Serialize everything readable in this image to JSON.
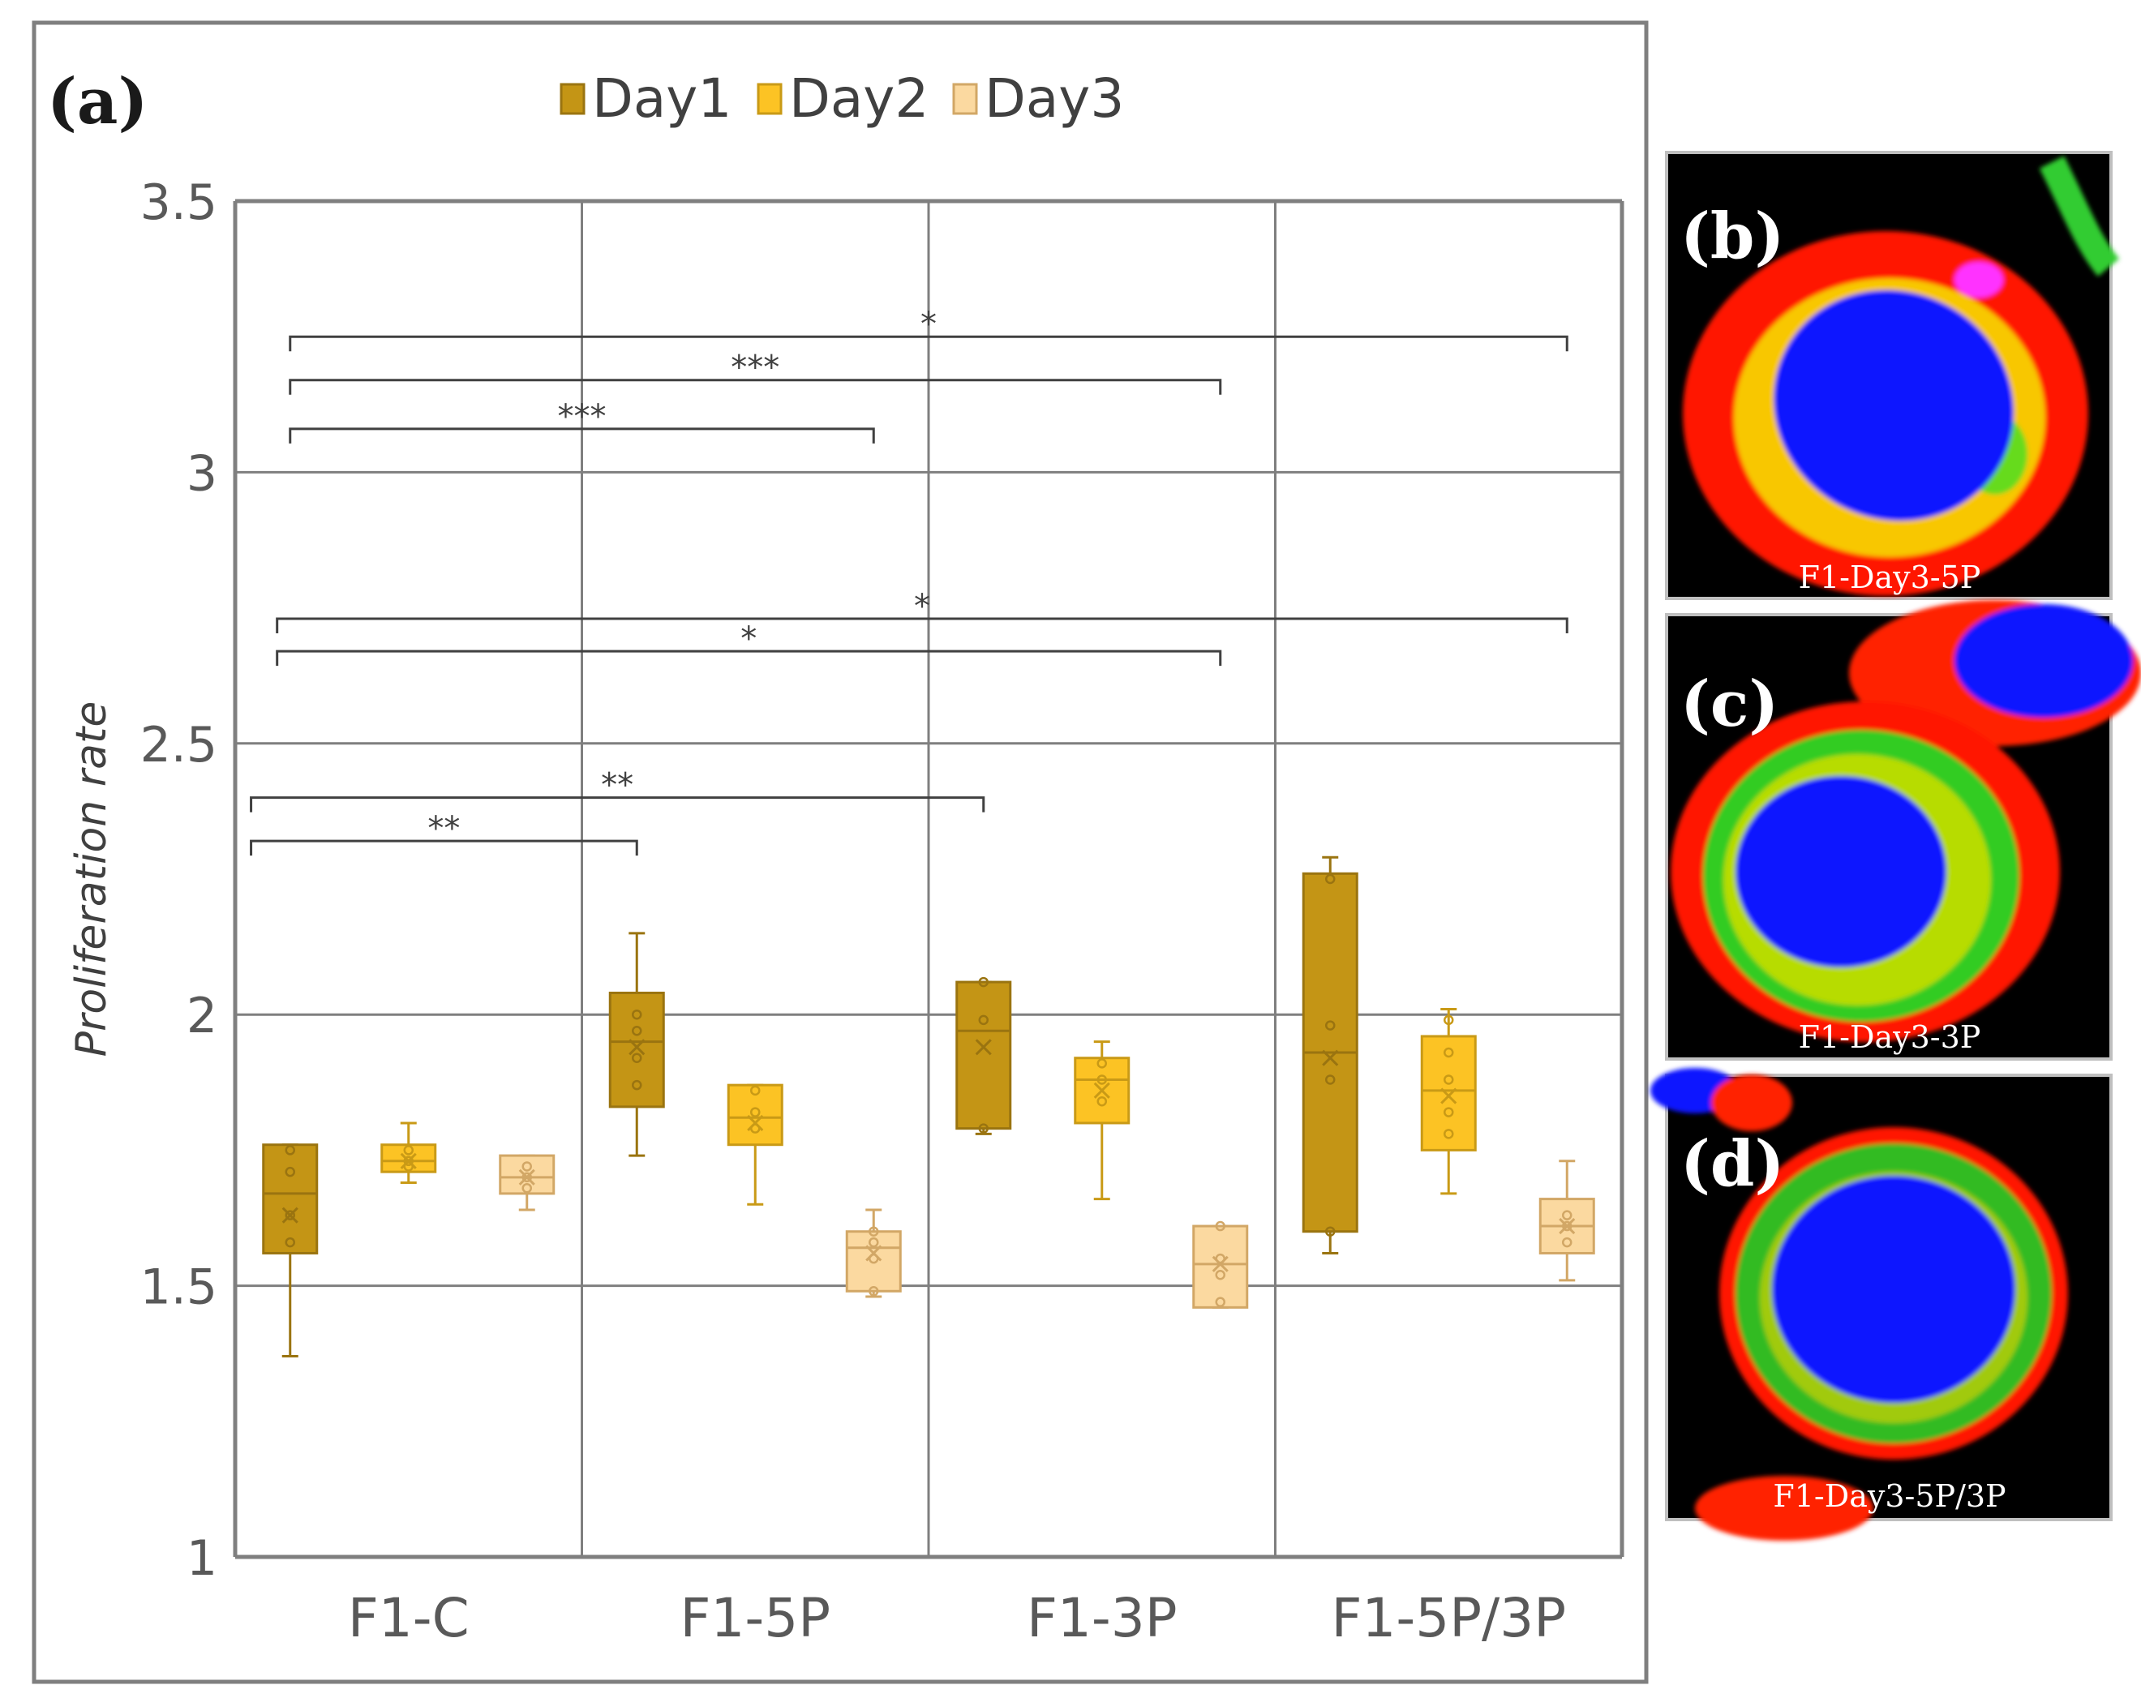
{
  "panels": {
    "a": {
      "label": "(a)"
    },
    "b": {
      "label": "(b)",
      "caption": "F1-Day3-5P"
    },
    "c": {
      "label": "(c)",
      "caption": "F1-Day3-3P"
    },
    "d": {
      "label": "(d)",
      "caption": "F1-Day3-5P/3P"
    }
  },
  "colors": {
    "day1": "#c49515",
    "day2": "#fcc324",
    "day3": "#fbd9a0",
    "day1_edge": "#9a7410",
    "day2_edge": "#c99a16",
    "day3_edge": "#d2a766",
    "grid": "#7f7f7f",
    "axis_text": "#595959"
  },
  "chart_data": {
    "type": "box",
    "title": "",
    "xlabel": "",
    "ylabel": "Proliferation rate",
    "ylim": [
      1,
      3.5
    ],
    "yticks": [
      1,
      1.5,
      2,
      2.5,
      3,
      3.5
    ],
    "ytick_labels": [
      "1",
      "1.5",
      "2",
      "2.5",
      "3",
      "3.5"
    ],
    "categories": [
      "F1-C",
      "F1-5P",
      "F1-3P",
      "F1-5P/3P"
    ],
    "grid": true,
    "legend_position": "top",
    "series": [
      {
        "name": "Day1",
        "color_key": "day1",
        "boxes": [
          {
            "min": 1.37,
            "q1": 1.56,
            "median": 1.67,
            "q3": 1.76,
            "max": 1.76,
            "mean": 1.63,
            "points": [
              1.58,
              1.63,
              1.71,
              1.75
            ]
          },
          {
            "min": 1.74,
            "q1": 1.83,
            "median": 1.95,
            "q3": 2.04,
            "max": 2.15,
            "mean": 1.94,
            "points": [
              1.87,
              1.92,
              1.97,
              2.0
            ]
          },
          {
            "min": 1.78,
            "q1": 1.79,
            "median": 1.97,
            "q3": 2.06,
            "max": 2.06,
            "mean": 1.94,
            "points": [
              1.79,
              1.99,
              2.06
            ]
          },
          {
            "min": 1.56,
            "q1": 1.6,
            "median": 1.93,
            "q3": 2.26,
            "max": 2.29,
            "mean": 1.92,
            "points": [
              1.6,
              1.88,
              1.98,
              2.25
            ]
          }
        ]
      },
      {
        "name": "Day2",
        "color_key": "day2",
        "boxes": [
          {
            "min": 1.69,
            "q1": 1.71,
            "median": 1.73,
            "q3": 1.76,
            "max": 1.8,
            "mean": 1.73,
            "points": [
              1.72,
              1.73,
              1.75
            ]
          },
          {
            "min": 1.65,
            "q1": 1.76,
            "median": 1.81,
            "q3": 1.87,
            "max": 1.87,
            "mean": 1.8,
            "points": [
              1.79,
              1.82,
              1.86
            ]
          },
          {
            "min": 1.66,
            "q1": 1.8,
            "median": 1.88,
            "q3": 1.92,
            "max": 1.95,
            "mean": 1.86,
            "points": [
              1.84,
              1.88,
              1.91
            ]
          },
          {
            "min": 1.67,
            "q1": 1.75,
            "median": 1.86,
            "q3": 1.96,
            "max": 2.01,
            "mean": 1.85,
            "points": [
              1.78,
              1.82,
              1.88,
              1.93,
              1.99
            ]
          }
        ]
      },
      {
        "name": "Day3",
        "color_key": "day3",
        "boxes": [
          {
            "min": 1.64,
            "q1": 1.67,
            "median": 1.7,
            "q3": 1.74,
            "max": 1.74,
            "mean": 1.7,
            "points": [
              1.68,
              1.7,
              1.72
            ]
          },
          {
            "min": 1.48,
            "q1": 1.49,
            "median": 1.57,
            "q3": 1.6,
            "max": 1.64,
            "mean": 1.56,
            "points": [
              1.49,
              1.55,
              1.58,
              1.6
            ]
          },
          {
            "min": 1.46,
            "q1": 1.46,
            "median": 1.54,
            "q3": 1.61,
            "max": 1.61,
            "mean": 1.54,
            "points": [
              1.47,
              1.52,
              1.55,
              1.61
            ]
          },
          {
            "min": 1.51,
            "q1": 1.56,
            "median": 1.61,
            "q3": 1.66,
            "max": 1.73,
            "mean": 1.61,
            "points": [
              1.58,
              1.61,
              1.63
            ]
          }
        ]
      }
    ],
    "significance": [
      {
        "from": [
          0,
          0
        ],
        "to": [
          3,
          2
        ],
        "y": 3.25,
        "label": "*"
      },
      {
        "from": [
          0,
          0
        ],
        "to": [
          2,
          2
        ],
        "y": 3.17,
        "label": "***"
      },
      {
        "from": [
          0,
          0
        ],
        "to": [
          1,
          2
        ],
        "y": 3.08,
        "label": "***"
      },
      {
        "from": [
          0,
          0
        ],
        "to": [
          3,
          2
        ],
        "y": 2.73,
        "label": "*",
        "from_offset": -0.2
      },
      {
        "from": [
          0,
          0
        ],
        "to": [
          2,
          2
        ],
        "y": 2.67,
        "label": "*",
        "from_offset": -0.2
      },
      {
        "from": [
          0,
          0
        ],
        "to": [
          2,
          0
        ],
        "y": 2.4,
        "label": "**",
        "from_offset": -0.6
      },
      {
        "from": [
          0,
          0
        ],
        "to": [
          1,
          0
        ],
        "y": 2.32,
        "label": "**",
        "from_offset": -0.6
      }
    ]
  }
}
